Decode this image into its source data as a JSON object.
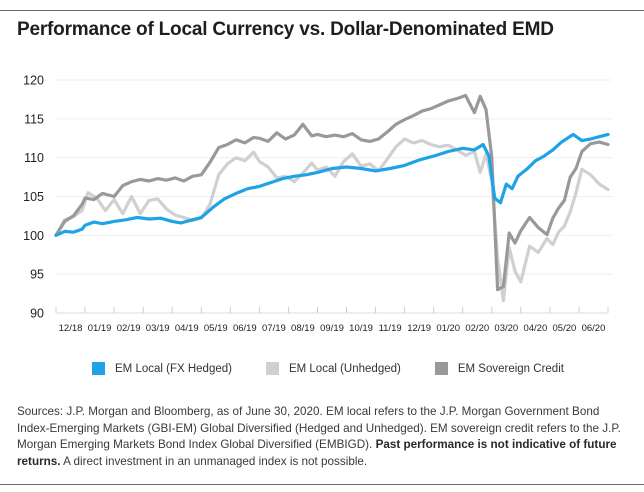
{
  "title": "Performance of Local Currency vs. Dollar-Denominated EMD",
  "chart_data": {
    "type": "line",
    "title": "Performance of Local Currency vs. Dollar-Denominated EMD",
    "xlabel": "",
    "ylabel": "",
    "ylim": [
      90,
      120
    ],
    "yticks": [
      90,
      95,
      100,
      105,
      110,
      115,
      120
    ],
    "xlim": [
      0,
      19
    ],
    "xtick_labels": [
      "12/18",
      "01/19",
      "02/19",
      "03/19",
      "04/19",
      "05/19",
      "06/19",
      "07/19",
      "08/19",
      "09/19",
      "10/19",
      "11/19",
      "12/19",
      "01/20",
      "02/20",
      "03/20",
      "04/20",
      "05/20",
      "06/20"
    ],
    "grid": true,
    "legend_position": "bottom",
    "series": [
      {
        "name": "EM Local (FX Hedged)",
        "color": "#1ea3e6",
        "x": [
          0,
          0.3,
          0.6,
          0.9,
          1.0,
          1.3,
          1.6,
          2.0,
          2.4,
          2.8,
          3.2,
          3.6,
          4.0,
          4.3,
          4.6,
          5.0,
          5.4,
          5.8,
          6.2,
          6.6,
          7.0,
          7.4,
          7.8,
          8.2,
          8.6,
          9.0,
          9.5,
          10.0,
          10.5,
          11.0,
          11.5,
          12.0,
          12.5,
          13.0,
          13.5,
          14.0,
          14.4,
          14.7,
          14.9,
          15.1,
          15.3,
          15.5,
          15.7,
          15.9,
          16.2,
          16.5,
          16.8,
          17.1,
          17.4,
          17.6,
          17.8,
          18.1,
          18.4,
          18.7,
          19.0
        ],
        "values": [
          100.0,
          100.5,
          100.4,
          100.8,
          101.3,
          101.7,
          101.5,
          101.8,
          102.0,
          102.3,
          102.1,
          102.2,
          101.8,
          101.6,
          101.9,
          102.3,
          103.6,
          104.7,
          105.4,
          106.0,
          106.3,
          106.8,
          107.3,
          107.6,
          107.8,
          108.1,
          108.6,
          108.8,
          108.6,
          108.3,
          108.6,
          109.0,
          109.7,
          110.2,
          110.8,
          111.2,
          111.0,
          111.7,
          110.2,
          104.8,
          104.2,
          106.6,
          106.0,
          107.6,
          108.5,
          109.6,
          110.2,
          111.0,
          112.0,
          112.5,
          113.0,
          112.2,
          112.4,
          112.7,
          113.0
        ]
      },
      {
        "name": "EM Local (Unhedged)",
        "color": "#d0d0d0",
        "x": [
          0,
          0.3,
          0.6,
          0.9,
          1.1,
          1.4,
          1.7,
          2.0,
          2.3,
          2.6,
          2.9,
          3.2,
          3.5,
          3.8,
          4.1,
          4.4,
          4.7,
          5.0,
          5.3,
          5.6,
          5.9,
          6.2,
          6.5,
          6.8,
          7.0,
          7.3,
          7.6,
          7.9,
          8.2,
          8.5,
          8.8,
          9.0,
          9.3,
          9.6,
          9.9,
          10.2,
          10.5,
          10.8,
          11.1,
          11.4,
          11.7,
          12.0,
          12.3,
          12.6,
          12.9,
          13.2,
          13.5,
          13.8,
          14.1,
          14.4,
          14.6,
          14.8,
          15.0,
          15.2,
          15.4,
          15.6,
          15.8,
          16.0,
          16.3,
          16.6,
          16.9,
          17.1,
          17.3,
          17.5,
          17.7,
          17.9,
          18.1,
          18.4,
          18.7,
          19.0
        ],
        "values": [
          100.0,
          102.0,
          102.4,
          103.2,
          105.5,
          104.8,
          103.2,
          104.6,
          102.8,
          105.0,
          102.8,
          104.5,
          104.7,
          103.4,
          102.6,
          102.3,
          101.9,
          102.2,
          104.0,
          107.8,
          109.2,
          110.0,
          109.6,
          110.7,
          109.5,
          108.8,
          107.4,
          107.6,
          106.9,
          108.0,
          109.3,
          108.4,
          108.8,
          107.6,
          109.5,
          110.5,
          108.9,
          109.2,
          108.3,
          109.8,
          111.4,
          112.4,
          111.9,
          112.2,
          111.7,
          111.4,
          111.6,
          111.0,
          110.3,
          110.8,
          108.1,
          110.5,
          107.0,
          97.0,
          91.6,
          98.4,
          95.4,
          94.0,
          98.6,
          97.8,
          99.6,
          98.8,
          100.4,
          101.2,
          103.0,
          105.5,
          108.5,
          107.8,
          106.6,
          105.9
        ]
      },
      {
        "name": "EM Sovereign Credit",
        "color": "#999999",
        "x": [
          0,
          0.3,
          0.6,
          0.9,
          1.0,
          1.3,
          1.6,
          2.0,
          2.3,
          2.6,
          2.9,
          3.2,
          3.5,
          3.8,
          4.1,
          4.4,
          4.7,
          5.0,
          5.3,
          5.6,
          5.9,
          6.2,
          6.5,
          6.8,
          7.0,
          7.3,
          7.6,
          7.9,
          8.2,
          8.5,
          8.8,
          9.0,
          9.3,
          9.6,
          9.9,
          10.2,
          10.5,
          10.8,
          11.1,
          11.4,
          11.7,
          12.0,
          12.3,
          12.6,
          12.9,
          13.2,
          13.5,
          13.8,
          14.1,
          14.4,
          14.6,
          14.8,
          15.0,
          15.2,
          15.4,
          15.6,
          15.8,
          16.0,
          16.3,
          16.6,
          16.9,
          17.1,
          17.3,
          17.5,
          17.7,
          17.9,
          18.1,
          18.4,
          18.7,
          19.0
        ],
        "values": [
          100.0,
          101.8,
          102.5,
          104.0,
          104.8,
          104.6,
          105.4,
          105.0,
          106.4,
          106.9,
          107.2,
          107.0,
          107.3,
          107.1,
          107.4,
          107.0,
          107.6,
          107.8,
          109.4,
          111.3,
          111.7,
          112.3,
          111.9,
          112.6,
          112.5,
          112.1,
          113.2,
          112.4,
          112.9,
          114.3,
          112.8,
          113.0,
          112.7,
          112.9,
          112.7,
          113.1,
          112.3,
          112.1,
          112.4,
          113.3,
          114.3,
          114.9,
          115.4,
          116.0,
          116.3,
          116.8,
          117.3,
          117.6,
          118.0,
          115.8,
          117.9,
          116.2,
          110.0,
          93.0,
          93.4,
          100.3,
          99.0,
          100.6,
          102.3,
          101.0,
          100.1,
          102.2,
          103.5,
          104.5,
          107.5,
          108.6,
          110.8,
          111.8,
          112.0,
          111.7
        ]
      }
    ]
  },
  "legend": {
    "items": [
      {
        "label": "EM Local (FX Hedged)",
        "color": "#1ea3e6"
      },
      {
        "label": "EM Local (Unhedged)",
        "color": "#d0d0d0"
      },
      {
        "label": "EM Sovereign Credit",
        "color": "#999999"
      }
    ]
  },
  "footnote": {
    "part1": "Sources: J.P. Morgan and Bloomberg, as of June 30, 2020. EM local refers to the J.P. Morgan Government Bond Index-Emerging Markets (GBI-EM) Global Diversified (Hedged and Unhedged). EM sovereign credit refers to the J.P. Morgan Emerging Markets Bond Index Global Diversified (EMBIGD). ",
    "bold": "Past performance is not indicative of future returns.",
    "part2": " A direct investment in an unmanaged index is not possible."
  }
}
